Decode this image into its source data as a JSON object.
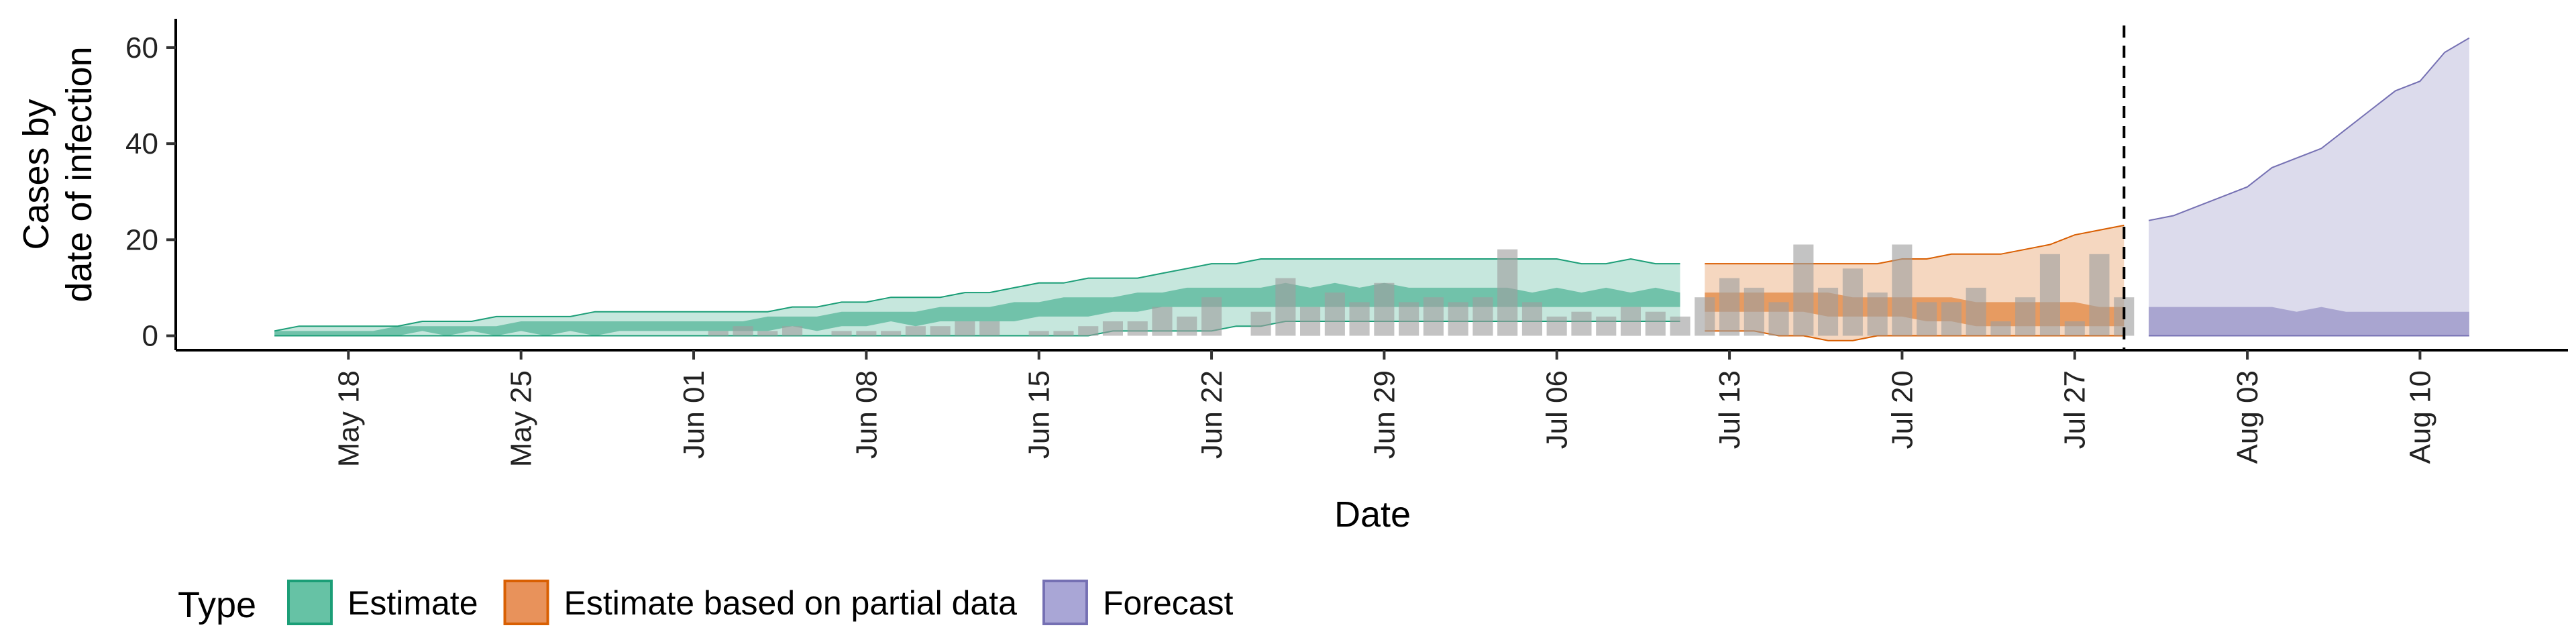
{
  "chart_data": {
    "type": "area",
    "xlabel": "Date",
    "ylabel_line1": "Cases by",
    "ylabel_line2": "date of infection",
    "ylim": [
      -3,
      66
    ],
    "y_ticks": [
      0,
      20,
      40,
      60
    ],
    "x_ticks": [
      {
        "date": "2020-05-18",
        "label": "May 18"
      },
      {
        "date": "2020-05-25",
        "label": "May 25"
      },
      {
        "date": "2020-06-01",
        "label": "Jun 01"
      },
      {
        "date": "2020-06-08",
        "label": "Jun 08"
      },
      {
        "date": "2020-06-15",
        "label": "Jun 15"
      },
      {
        "date": "2020-06-22",
        "label": "Jun 22"
      },
      {
        "date": "2020-06-29",
        "label": "Jun 29"
      },
      {
        "date": "2020-07-06",
        "label": "Jul 06"
      },
      {
        "date": "2020-07-13",
        "label": "Jul 13"
      },
      {
        "date": "2020-07-20",
        "label": "Jul 20"
      },
      {
        "date": "2020-07-27",
        "label": "Jul 27"
      },
      {
        "date": "2020-08-03",
        "label": "Aug 03"
      },
      {
        "date": "2020-08-10",
        "label": "Aug 10"
      }
    ],
    "x_range": [
      "2020-05-11",
      "2020-08-16"
    ],
    "vline_date": "2020-07-29",
    "observed_cases": {
      "dates": [
        "2020-05-31",
        "2020-06-01",
        "2020-06-02",
        "2020-06-03",
        "2020-06-04",
        "2020-06-05",
        "2020-06-06",
        "2020-06-07",
        "2020-06-08",
        "2020-06-09",
        "2020-06-10",
        "2020-06-11",
        "2020-06-12",
        "2020-06-13",
        "2020-06-14",
        "2020-06-15",
        "2020-06-16",
        "2020-06-17",
        "2020-06-18",
        "2020-06-19",
        "2020-06-20",
        "2020-06-21",
        "2020-06-22",
        "2020-06-23",
        "2020-06-24",
        "2020-06-25",
        "2020-06-26",
        "2020-06-27",
        "2020-06-28",
        "2020-06-29",
        "2020-06-30",
        "2020-07-01",
        "2020-07-02",
        "2020-07-03",
        "2020-07-04",
        "2020-07-05",
        "2020-07-06",
        "2020-07-07",
        "2020-07-08",
        "2020-07-09",
        "2020-07-10",
        "2020-07-11",
        "2020-07-12",
        "2020-07-13",
        "2020-07-14",
        "2020-07-15",
        "2020-07-16",
        "2020-07-17",
        "2020-07-18",
        "2020-07-19",
        "2020-07-20",
        "2020-07-21",
        "2020-07-22",
        "2020-07-23",
        "2020-07-24",
        "2020-07-25",
        "2020-07-26",
        "2020-07-27",
        "2020-07-28",
        "2020-07-29"
      ],
      "values": [
        0,
        0,
        1,
        2,
        1,
        2,
        0,
        1,
        1,
        1,
        2,
        2,
        3,
        3,
        0,
        1,
        1,
        2,
        3,
        3,
        6,
        4,
        8,
        0,
        5,
        12,
        6,
        9,
        7,
        11,
        7,
        8,
        7,
        8,
        18,
        7,
        4,
        5,
        4,
        6,
        5,
        4,
        8,
        12,
        10,
        7,
        19,
        10,
        14,
        9,
        19,
        7,
        7,
        10,
        3,
        8,
        17,
        3,
        17,
        8
      ]
    },
    "series": [
      {
        "name": "Estimate",
        "color": "#1B9E77",
        "dates": [
          "2020-05-15",
          "2020-05-16",
          "2020-05-17",
          "2020-05-18",
          "2020-05-19",
          "2020-05-20",
          "2020-05-21",
          "2020-05-22",
          "2020-05-23",
          "2020-05-24",
          "2020-05-25",
          "2020-05-26",
          "2020-05-27",
          "2020-05-28",
          "2020-05-29",
          "2020-05-30",
          "2020-05-31",
          "2020-06-01",
          "2020-06-02",
          "2020-06-03",
          "2020-06-04",
          "2020-06-05",
          "2020-06-06",
          "2020-06-07",
          "2020-06-08",
          "2020-06-09",
          "2020-06-10",
          "2020-06-11",
          "2020-06-12",
          "2020-06-13",
          "2020-06-14",
          "2020-06-15",
          "2020-06-16",
          "2020-06-17",
          "2020-06-18",
          "2020-06-19",
          "2020-06-20",
          "2020-06-21",
          "2020-06-22",
          "2020-06-23",
          "2020-06-24",
          "2020-06-25",
          "2020-06-26",
          "2020-06-27",
          "2020-06-28",
          "2020-06-29",
          "2020-06-30",
          "2020-07-01",
          "2020-07-02",
          "2020-07-03",
          "2020-07-04",
          "2020-07-05",
          "2020-07-06",
          "2020-07-07",
          "2020-07-08",
          "2020-07-09",
          "2020-07-10",
          "2020-07-11"
        ],
        "upper90": [
          1,
          2,
          2,
          2,
          2,
          2,
          3,
          3,
          3,
          4,
          4,
          4,
          4,
          5,
          5,
          5,
          5,
          5,
          5,
          5,
          5,
          6,
          6,
          7,
          7,
          8,
          8,
          8,
          9,
          9,
          10,
          11,
          11,
          12,
          12,
          12,
          13,
          14,
          15,
          15,
          16,
          16,
          16,
          16,
          16,
          16,
          16,
          16,
          16,
          16,
          16,
          16,
          16,
          15,
          15,
          16,
          15,
          15
        ],
        "upper50": [
          1,
          1,
          1,
          1,
          1,
          2,
          2,
          2,
          2,
          2,
          3,
          3,
          3,
          3,
          3,
          3,
          3,
          3,
          3,
          3,
          4,
          4,
          4,
          5,
          5,
          5,
          5,
          6,
          6,
          6,
          7,
          7,
          8,
          8,
          8,
          9,
          9,
          10,
          10,
          10,
          10,
          11,
          10,
          11,
          10,
          11,
          10,
          10,
          10,
          10,
          10,
          9,
          10,
          9,
          10,
          9,
          10,
          9
        ],
        "lower50": [
          0,
          0,
          0,
          0,
          0,
          0,
          1,
          0,
          1,
          0,
          1,
          0,
          1,
          0,
          1,
          1,
          1,
          1,
          1,
          1,
          1,
          2,
          1,
          2,
          2,
          3,
          2,
          3,
          3,
          3,
          3,
          4,
          4,
          4,
          5,
          5,
          6,
          6,
          6,
          6,
          6,
          6,
          6,
          6,
          6,
          6,
          6,
          6,
          6,
          6,
          6,
          6,
          6,
          6,
          6,
          6,
          6,
          6
        ],
        "lower90": [
          0,
          0,
          0,
          0,
          0,
          0,
          0,
          0,
          0,
          0,
          0,
          0,
          0,
          0,
          0,
          0,
          0,
          0,
          0,
          0,
          0,
          0,
          0,
          0,
          0,
          0,
          0,
          0,
          0,
          0,
          0,
          0,
          0,
          0,
          1,
          1,
          1,
          1,
          1,
          2,
          2,
          3,
          3,
          3,
          3,
          3,
          3,
          3,
          3,
          3,
          3,
          3,
          3,
          3,
          3,
          3,
          3,
          3
        ]
      },
      {
        "name": "Estimate based on partial data",
        "color": "#D95F02",
        "dates": [
          "2020-07-12",
          "2020-07-13",
          "2020-07-14",
          "2020-07-15",
          "2020-07-16",
          "2020-07-17",
          "2020-07-18",
          "2020-07-19",
          "2020-07-20",
          "2020-07-21",
          "2020-07-22",
          "2020-07-23",
          "2020-07-24",
          "2020-07-25",
          "2020-07-26",
          "2020-07-27",
          "2020-07-28",
          "2020-07-29"
        ],
        "upper90": [
          15,
          15,
          15,
          15,
          15,
          15,
          15,
          15,
          16,
          16,
          17,
          17,
          17,
          18,
          19,
          21,
          22,
          23
        ],
        "upper50": [
          9,
          9,
          9,
          9,
          9,
          9,
          8,
          8,
          8,
          8,
          8,
          7,
          7,
          7,
          7,
          7,
          6,
          6
        ],
        "lower50": [
          5,
          5,
          5,
          5,
          5,
          4,
          4,
          4,
          4,
          3,
          3,
          2,
          2,
          2,
          2,
          2,
          2,
          2
        ],
        "lower90": [
          1,
          1,
          1,
          0,
          0,
          -1,
          -1,
          0,
          0,
          0,
          0,
          0,
          0,
          0,
          0,
          0,
          0,
          0
        ]
      },
      {
        "name": "Forecast",
        "color": "#7570B3",
        "dates": [
          "2020-07-30",
          "2020-07-31",
          "2020-08-01",
          "2020-08-02",
          "2020-08-03",
          "2020-08-04",
          "2020-08-05",
          "2020-08-06",
          "2020-08-07",
          "2020-08-08",
          "2020-08-09",
          "2020-08-10",
          "2020-08-11",
          "2020-08-12",
          "2020-08-13",
          "2020-08-14",
          "2020-08-15"
        ],
        "upper90": [
          24,
          25,
          27,
          29,
          31,
          35,
          37,
          39,
          43,
          47,
          51,
          53,
          59,
          62,
          null,
          null,
          null
        ],
        "upper50": [
          6,
          6,
          6,
          6,
          6,
          6,
          5,
          6,
          5,
          5,
          5,
          5,
          5,
          5,
          null,
          null,
          null
        ],
        "lower50": [
          0,
          0,
          0,
          0,
          0,
          0,
          0,
          0,
          0,
          0,
          0,
          0,
          0,
          0,
          null,
          null,
          null
        ],
        "lower90": [
          0,
          0,
          0,
          0,
          0,
          0,
          0,
          0,
          0,
          0,
          0,
          0,
          0,
          0,
          null,
          null,
          null
        ]
      }
    ],
    "legend": {
      "title": "Type",
      "placement": "bottom",
      "items": [
        {
          "label": "Estimate",
          "fill": "#66C2A5",
          "stroke": "#1B9E77"
        },
        {
          "label": "Estimate based on partial data",
          "fill": "#E8925B",
          "stroke": "#D95F02"
        },
        {
          "label": "Forecast",
          "fill": "#A9A6D6",
          "stroke": "#7570B3"
        }
      ]
    }
  }
}
